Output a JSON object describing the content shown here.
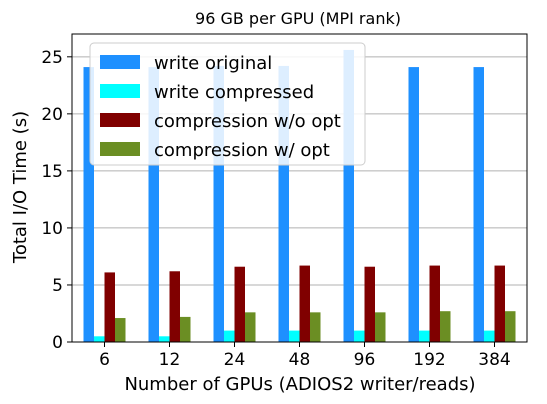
{
  "chart_data": {
    "type": "bar",
    "title": "96 GB per GPU (MPI rank)",
    "xlabel": "Number of GPUs (ADIOS2 writer/reads)",
    "ylabel": "Total I/O Time (s)",
    "categories": [
      "6",
      "12",
      "24",
      "48",
      "96",
      "192",
      "384"
    ],
    "ylim": [
      0,
      27
    ],
    "yticks": [
      0,
      5,
      10,
      15,
      20,
      25
    ],
    "grid": "horizontal",
    "legend_position": "top-left",
    "series": [
      {
        "name": "write original",
        "color": "#1e90ff",
        "values": [
          24.1,
          24.1,
          24.2,
          24.2,
          25.6,
          24.1,
          24.1
        ]
      },
      {
        "name": "write compressed",
        "color": "#00ffff",
        "values": [
          0.5,
          0.5,
          1.0,
          1.0,
          1.0,
          1.0,
          1.0
        ]
      },
      {
        "name": "compression w/o opt",
        "color": "#800000",
        "values": [
          6.1,
          6.2,
          6.6,
          6.7,
          6.6,
          6.7,
          6.7
        ]
      },
      {
        "name": "compression w/ opt",
        "color": "#6b8e23",
        "values": [
          2.1,
          2.2,
          2.6,
          2.6,
          2.6,
          2.7,
          2.7
        ]
      }
    ]
  }
}
